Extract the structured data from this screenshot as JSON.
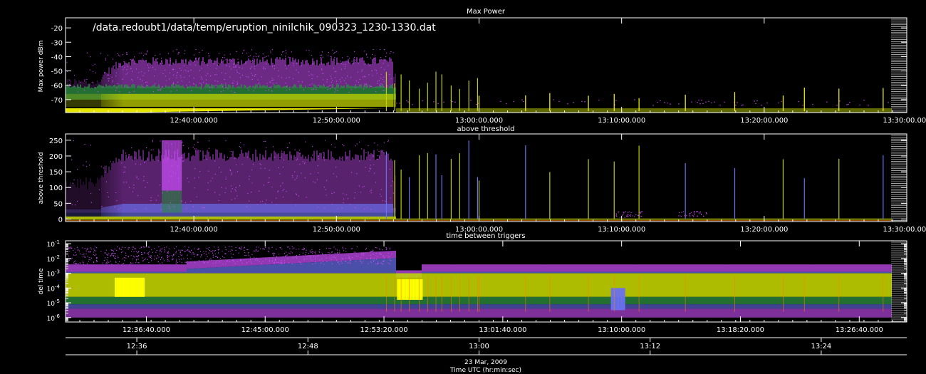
{
  "chart_data": [
    {
      "type": "scatter",
      "title": "Max Power",
      "file_label": "/data.redoubt1/data/temp/eruption_ninilchik_090323_1230-1330.dat",
      "ylabel": "Max power dBm",
      "yticks": [
        "-20",
        "-30",
        "-40",
        "-50",
        "-60",
        "-70"
      ],
      "ytick_values": [
        -20,
        -30,
        -40,
        -50,
        -60,
        -70
      ],
      "ylim": [
        -79,
        -13
      ],
      "xticks": [
        "12:40:00.000",
        "12:50:00.000",
        "13:00:00.000",
        "13:10:00.000",
        "13:20:00.000",
        "13:30:00.000"
      ],
      "xtick_minutes": [
        40,
        50,
        60,
        70,
        80,
        90
      ],
      "xlim_minutes": [
        31.0,
        90.0
      ]
    },
    {
      "type": "scatter",
      "title": "above threshold",
      "ylabel": "above threshold",
      "yticks": [
        "250",
        "200",
        "150",
        "100",
        "50",
        "0"
      ],
      "ytick_values": [
        250,
        200,
        150,
        100,
        50,
        0
      ],
      "ylim": [
        -8,
        270
      ],
      "xticks": [
        "12:40:00.000",
        "12:50:00.000",
        "13:00:00.000",
        "13:10:00.000",
        "13:20:00.000",
        "13:30:00.000"
      ],
      "xtick_minutes": [
        40,
        50,
        60,
        70,
        80,
        90
      ],
      "xlim_minutes": [
        31.0,
        90.0
      ]
    },
    {
      "type": "scatter",
      "title": "time between triggers",
      "ylabel": "del time",
      "yscale": "log",
      "yticks": [
        "10^-1",
        "10^-2",
        "10^-3",
        "10^-4",
        "10^-5",
        "10^-6"
      ],
      "ytick_exponents": [
        -1,
        -2,
        -3,
        -4,
        -5,
        -6
      ],
      "ylim_exponents": [
        -6.3,
        -0.8
      ],
      "xticks": [
        "12:36:40.000",
        "12:45:00.000",
        "12:53:20.000",
        "13:01:40.000",
        "13:10:00.000",
        "13:18:20.000",
        "13:26:40.000"
      ],
      "xtick_minutes": [
        36.667,
        45.0,
        53.333,
        61.667,
        70.0,
        78.333,
        86.667
      ],
      "xlim_minutes": [
        31.0,
        90.0
      ]
    }
  ],
  "bottom_axis": {
    "ticks": [
      "12:36",
      "12:48",
      "13:00",
      "13:12",
      "13:24"
    ],
    "tick_minutes": [
      36,
      48,
      60,
      72,
      84
    ]
  },
  "date_label": "23 Mar, 2009",
  "xlabel": "Time UTC (hr:min:sec)",
  "colors": {
    "background": "#000000",
    "axes": "#ffffff",
    "magenta": "#d050ff",
    "blue": "#6a70f0",
    "green": "#2a8a40",
    "yellow_green": "#c0d000",
    "yellow": "#ffff00",
    "orange": "#ff8000",
    "red": "#ff2000"
  }
}
